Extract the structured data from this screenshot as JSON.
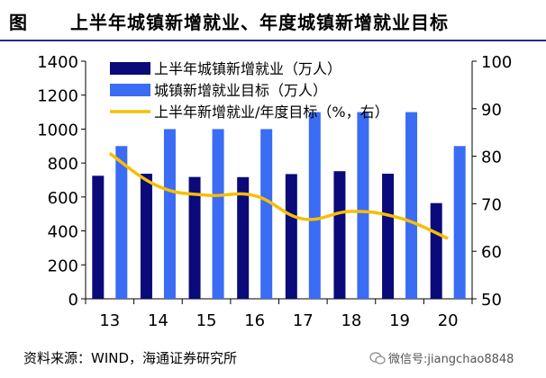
{
  "title": {
    "label": "图",
    "text": "上半年城镇新增就业、年度城镇新增就业目标"
  },
  "source": "资料来源：WIND，海通证券研究所",
  "watermark": {
    "icon": "wechat-icon",
    "text": "微信号:jiangchao8848"
  },
  "chart_data": {
    "type": "bar",
    "categories": [
      "13",
      "14",
      "15",
      "16",
      "17",
      "18",
      "19",
      "20"
    ],
    "series": [
      {
        "name": "上半年城镇新增就业（万人）",
        "type": "bar",
        "axis": "left",
        "color": "#0a0a7a",
        "values": [
          725,
          737,
          718,
          717,
          735,
          752,
          737,
          564
        ]
      },
      {
        "name": "城镇新增就业目标（万人）",
        "type": "bar",
        "axis": "left",
        "color": "#3a6cf4",
        "values": [
          900,
          1000,
          1000,
          1000,
          1100,
          1100,
          1100,
          900
        ]
      },
      {
        "name": "上半年新增就业/年度目标（%，右）",
        "type": "line",
        "axis": "right",
        "color": "#f7be00",
        "values": [
          80.6,
          73.7,
          71.8,
          71.7,
          66.8,
          68.4,
          67.0,
          62.7
        ]
      }
    ],
    "y_left": {
      "min": 0,
      "max": 1400,
      "ticks": [
        0,
        200,
        400,
        600,
        800,
        1000,
        1200,
        1400
      ]
    },
    "y_right": {
      "min": 50,
      "max": 100,
      "ticks": [
        50,
        60,
        70,
        80,
        90,
        100
      ]
    },
    "legend_position": "top-left",
    "grid": false
  }
}
